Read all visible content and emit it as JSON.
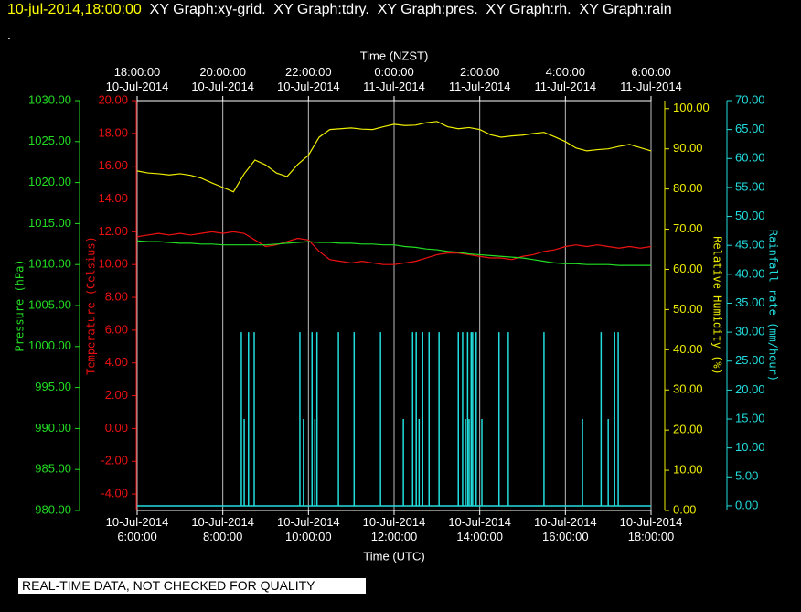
{
  "header": {
    "timestamp": "10-jul-2014,18:00:00",
    "graphs": "XY Graph:xy-grid.  XY Graph:tdry.  XY Graph:pres.  XY Graph:rh.  XY Graph:rain",
    "line2": "."
  },
  "notice": "REAL-TIME DATA, NOT CHECKED FOR QUALITY",
  "chart_data": {
    "type": "line",
    "grid": true,
    "x_title": "Time (UTC)",
    "x2_title": "Time (NZST)",
    "xlim": [
      "2014-07-10T06:00",
      "2014-07-10T18:00"
    ],
    "xticks": [
      {
        "value": "2014-07-10T06:00",
        "label": [
          "10-Jul-2014",
          "6:00:00"
        ]
      },
      {
        "value": "2014-07-10T08:00",
        "label": [
          "10-Jul-2014",
          "8:00:00"
        ]
      },
      {
        "value": "2014-07-10T10:00",
        "label": [
          "10-Jul-2014",
          "10:00:00"
        ]
      },
      {
        "value": "2014-07-10T12:00",
        "label": [
          "10-Jul-2014",
          "12:00:00"
        ]
      },
      {
        "value": "2014-07-10T14:00",
        "label": [
          "10-Jul-2014",
          "14:00:00"
        ]
      },
      {
        "value": "2014-07-10T16:00",
        "label": [
          "10-Jul-2014",
          "16:00:00"
        ]
      },
      {
        "value": "2014-07-10T18:00",
        "label": [
          "10-Jul-2014",
          "18:00:00"
        ]
      }
    ],
    "x2ticks": [
      {
        "value": "2014-07-10T06:00",
        "label": [
          "18:00:00",
          "10-Jul-2014"
        ]
      },
      {
        "value": "2014-07-10T08:00",
        "label": [
          "20:00:00",
          "10-Jul-2014"
        ]
      },
      {
        "value": "2014-07-10T10:00",
        "label": [
          "22:00:00",
          "10-Jul-2014"
        ]
      },
      {
        "value": "2014-07-10T12:00",
        "label": [
          "0:00:00",
          "11-Jul-2014"
        ]
      },
      {
        "value": "2014-07-10T14:00",
        "label": [
          "2:00:00",
          "11-Jul-2014"
        ]
      },
      {
        "value": "2014-07-10T16:00",
        "label": [
          "4:00:00",
          "11-Jul-2014"
        ]
      },
      {
        "value": "2014-07-10T18:00",
        "label": [
          "6:00:00",
          "11-Jul-2014"
        ]
      }
    ],
    "axes": [
      {
        "title": "Pressure (hPa)",
        "color": "#22dd22",
        "ylim": [
          980,
          1030
        ],
        "yticks": [
          {
            "value": 980,
            "label": "980.00"
          },
          {
            "value": 985,
            "label": "985.00"
          },
          {
            "value": 990,
            "label": "990.00"
          },
          {
            "value": 995,
            "label": "995.00"
          },
          {
            "value": 1000,
            "label": "1000.00"
          },
          {
            "value": 1005,
            "label": "1005.00"
          },
          {
            "value": 1010,
            "label": "1010.00"
          },
          {
            "value": 1015,
            "label": "1015.00"
          },
          {
            "value": 1020,
            "label": "1020.00"
          },
          {
            "value": 1025,
            "label": "1025.00"
          },
          {
            "value": 1030,
            "label": "1030.00"
          }
        ]
      },
      {
        "title": "Temperature (Celsius)",
        "color": "#ee1111",
        "ylim": [
          -5,
          20
        ],
        "yticks": [
          {
            "value": -4,
            "label": "-4.00"
          },
          {
            "value": -2,
            "label": "-2.00"
          },
          {
            "value": 0,
            "label": "0.00"
          },
          {
            "value": 2,
            "label": "2.00"
          },
          {
            "value": 4,
            "label": "4.00"
          },
          {
            "value": 6,
            "label": "6.00"
          },
          {
            "value": 8,
            "label": "8.00"
          },
          {
            "value": 10,
            "label": "10.00"
          },
          {
            "value": 12,
            "label": "12.00"
          },
          {
            "value": 14,
            "label": "14.00"
          },
          {
            "value": 16,
            "label": "16.00"
          },
          {
            "value": 18,
            "label": "18.00"
          },
          {
            "value": 20,
            "label": "20.00"
          }
        ]
      },
      {
        "title": "Relative Humidity (%)",
        "color": "#eeee00",
        "ylim": [
          0,
          102
        ],
        "yticks": [
          {
            "value": 0,
            "label": "0.00"
          },
          {
            "value": 10,
            "label": "10.00"
          },
          {
            "value": 20,
            "label": "20.00"
          },
          {
            "value": 30,
            "label": "30.00"
          },
          {
            "value": 40,
            "label": "40.00"
          },
          {
            "value": 50,
            "label": "50.00"
          },
          {
            "value": 60,
            "label": "60.00"
          },
          {
            "value": 70,
            "label": "70.00"
          },
          {
            "value": 80,
            "label": "80.00"
          },
          {
            "value": 90,
            "label": "90.00"
          },
          {
            "value": 100,
            "label": "100.00"
          }
        ]
      },
      {
        "title": "Rainfall rate (mm/hour)",
        "color": "#22dddd",
        "ylim": [
          -0.8,
          70
        ],
        "yticks": [
          {
            "value": 0,
            "label": "0.00"
          },
          {
            "value": 5,
            "label": "5.00"
          },
          {
            "value": 10,
            "label": "10.00"
          },
          {
            "value": 15,
            "label": "15.00"
          },
          {
            "value": 20,
            "label": "20.00"
          },
          {
            "value": 25,
            "label": "25.00"
          },
          {
            "value": 30,
            "label": "30.00"
          },
          {
            "value": 35,
            "label": "35.00"
          },
          {
            "value": 40,
            "label": "40.00"
          },
          {
            "value": 45,
            "label": "45.00"
          },
          {
            "value": 50,
            "label": "50.00"
          },
          {
            "value": 55,
            "label": "55.00"
          },
          {
            "value": 60,
            "label": "60.00"
          },
          {
            "value": 65,
            "label": "65.00"
          },
          {
            "value": 70,
            "label": "70.00"
          }
        ]
      }
    ],
    "x": [
      "2014-07-10T06:00",
      "2014-07-10T06:15",
      "2014-07-10T06:30",
      "2014-07-10T06:45",
      "2014-07-10T07:00",
      "2014-07-10T07:15",
      "2014-07-10T07:30",
      "2014-07-10T07:45",
      "2014-07-10T08:00",
      "2014-07-10T08:15",
      "2014-07-10T08:30",
      "2014-07-10T08:45",
      "2014-07-10T09:00",
      "2014-07-10T09:15",
      "2014-07-10T09:30",
      "2014-07-10T09:45",
      "2014-07-10T10:00",
      "2014-07-10T10:15",
      "2014-07-10T10:30",
      "2014-07-10T10:45",
      "2014-07-10T11:00",
      "2014-07-10T11:15",
      "2014-07-10T11:30",
      "2014-07-10T11:45",
      "2014-07-10T12:00",
      "2014-07-10T12:15",
      "2014-07-10T12:30",
      "2014-07-10T12:45",
      "2014-07-10T13:00",
      "2014-07-10T13:15",
      "2014-07-10T13:30",
      "2014-07-10T13:45",
      "2014-07-10T14:00",
      "2014-07-10T14:15",
      "2014-07-10T14:30",
      "2014-07-10T14:45",
      "2014-07-10T15:00",
      "2014-07-10T15:15",
      "2014-07-10T15:30",
      "2014-07-10T15:45",
      "2014-07-10T16:00",
      "2014-07-10T16:15",
      "2014-07-10T16:30",
      "2014-07-10T16:45",
      "2014-07-10T17:00",
      "2014-07-10T17:15",
      "2014-07-10T17:30",
      "2014-07-10T17:45",
      "2014-07-10T18:00"
    ],
    "series": [
      {
        "axis": 2,
        "style": "line",
        "color": "#eeee00",
        "values": [
          84.5,
          84.0,
          83.8,
          83.5,
          83.8,
          83.4,
          82.7,
          81.5,
          80.4,
          79.3,
          83.8,
          87.2,
          86.0,
          84.0,
          83.1,
          86.1,
          88.4,
          92.9,
          94.8,
          95.0,
          95.2,
          94.9,
          94.8,
          95.5,
          96.1,
          95.8,
          95.9,
          96.5,
          96.8,
          95.5,
          95.0,
          95.3,
          94.8,
          93.5,
          92.9,
          93.2,
          93.4,
          93.8,
          94.1,
          93.0,
          91.8,
          90.2,
          89.5,
          89.8,
          90.0,
          90.6,
          91.1,
          90.3,
          89.5
        ]
      },
      {
        "axis": 1,
        "style": "line",
        "color": "#ee1111",
        "values": [
          11.7,
          11.8,
          11.9,
          11.8,
          11.9,
          11.8,
          11.9,
          12.0,
          11.9,
          12.0,
          11.9,
          11.5,
          11.1,
          11.2,
          11.4,
          11.6,
          11.5,
          10.8,
          10.3,
          10.2,
          10.1,
          10.2,
          10.1,
          10.0,
          10.0,
          10.1,
          10.2,
          10.4,
          10.6,
          10.7,
          10.7,
          10.6,
          10.5,
          10.4,
          10.4,
          10.3,
          10.5,
          10.6,
          10.8,
          10.9,
          11.1,
          11.2,
          11.1,
          11.2,
          11.1,
          11.0,
          11.1,
          11.0,
          11.1
        ]
      },
      {
        "axis": 0,
        "style": "line",
        "color": "#22dd22",
        "values": [
          1012.9,
          1012.8,
          1012.8,
          1012.7,
          1012.6,
          1012.6,
          1012.5,
          1012.5,
          1012.4,
          1012.4,
          1012.4,
          1012.4,
          1012.4,
          1012.5,
          1012.6,
          1012.7,
          1012.8,
          1012.7,
          1012.7,
          1012.6,
          1012.6,
          1012.5,
          1012.5,
          1012.4,
          1012.4,
          1012.2,
          1012.1,
          1011.9,
          1011.8,
          1011.6,
          1011.5,
          1011.3,
          1011.2,
          1011.1,
          1011.0,
          1010.9,
          1010.8,
          1010.6,
          1010.4,
          1010.2,
          1010.1,
          1010.1,
          1010.0,
          1010.0,
          1010.0,
          1009.9,
          1009.9,
          1009.9,
          1009.9
        ]
      },
      {
        "axis": 3,
        "style": "impulse",
        "color": "#22dddd",
        "x": [
          "2014-07-10T08:26",
          "2014-07-10T08:30",
          "2014-07-10T08:36",
          "2014-07-10T08:44",
          "2014-07-10T09:48",
          "2014-07-10T09:53",
          "2014-07-10T10:05",
          "2014-07-10T10:09",
          "2014-07-10T10:12",
          "2014-07-10T10:42",
          "2014-07-10T11:04",
          "2014-07-10T11:41",
          "2014-07-10T12:13",
          "2014-07-10T12:26",
          "2014-07-10T12:31",
          "2014-07-10T12:35",
          "2014-07-10T12:40",
          "2014-07-10T12:49",
          "2014-07-10T13:03",
          "2014-07-10T13:30",
          "2014-07-10T13:36",
          "2014-07-10T13:40",
          "2014-07-10T13:43",
          "2014-07-10T13:45",
          "2014-07-10T13:48",
          "2014-07-10T13:50",
          "2014-07-10T13:55",
          "2014-07-10T14:03",
          "2014-07-10T14:27",
          "2014-07-10T14:40",
          "2014-07-10T15:30",
          "2014-07-10T16:24",
          "2014-07-10T16:50",
          "2014-07-10T17:00",
          "2014-07-10T17:09",
          "2014-07-10T17:14"
        ],
        "values": [
          30,
          15,
          30,
          30,
          30,
          15,
          30,
          15,
          30,
          30,
          30,
          30,
          15,
          30,
          30,
          15,
          30,
          30,
          30,
          30,
          30,
          15,
          30,
          15,
          30,
          30,
          30,
          15,
          30,
          30,
          30,
          15,
          30,
          15,
          30,
          30
        ]
      }
    ]
  }
}
